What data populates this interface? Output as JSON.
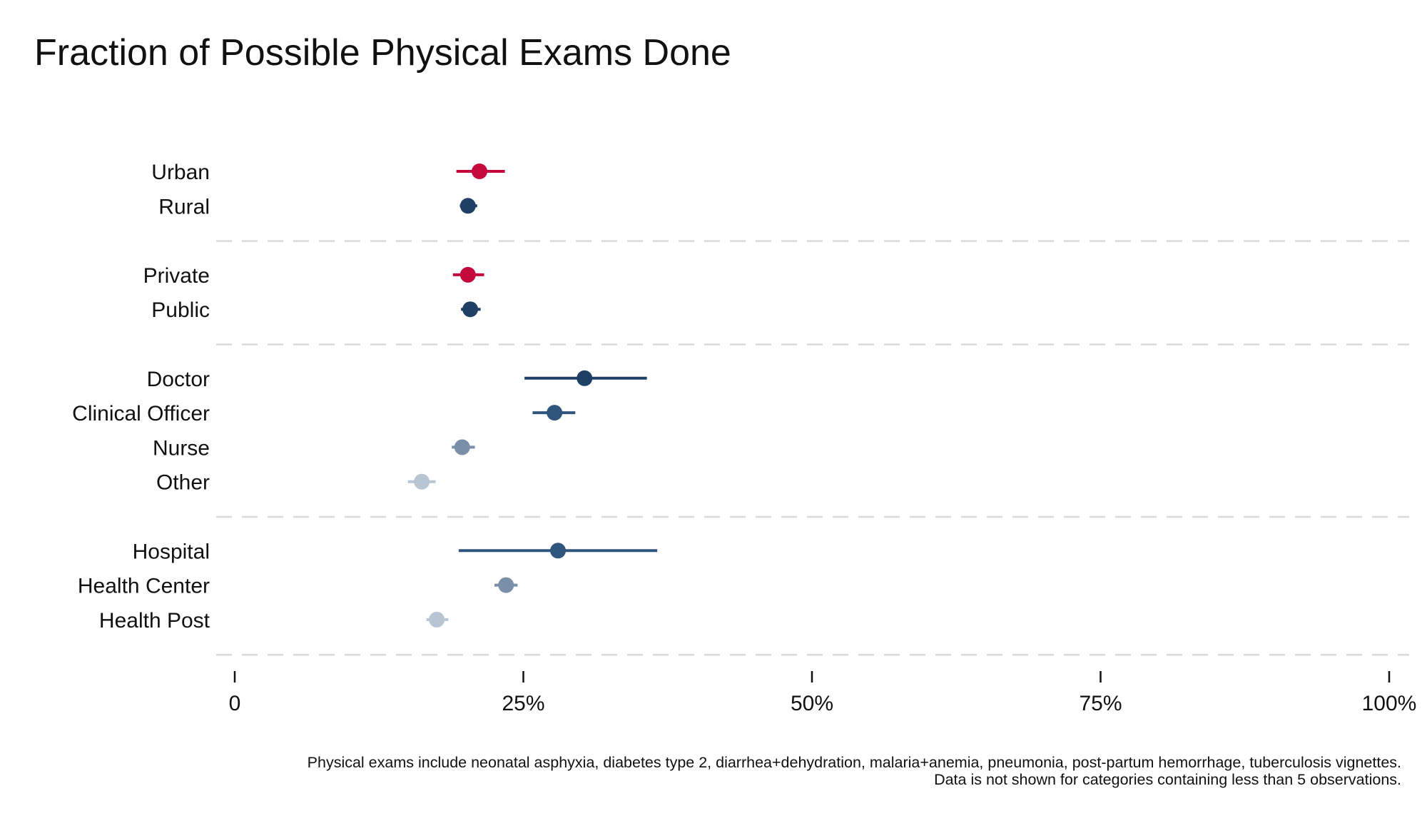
{
  "chart_data": {
    "type": "scatter",
    "subtype": "dot-and-whisker",
    "title": "Fraction of Possible Physical Exams Done",
    "xlim": [
      0,
      100
    ],
    "x_ticks": [
      0,
      25,
      50,
      75,
      100
    ],
    "x_tick_labels": [
      "0",
      "25%",
      "50%",
      "75%",
      "100%"
    ],
    "xlabel": "",
    "ylabel": "",
    "grid": false,
    "group_separators": "dashed",
    "colors": {
      "red": "#c4083c",
      "navy": "#1f3f66",
      "blue": "#2f557d",
      "steel": "#7a90a8",
      "light": "#b8c6d3",
      "separator": "#d9d9d9"
    },
    "groups": [
      {
        "rows": [
          {
            "label": "Urban",
            "value": 21.2,
            "ci": [
              19.2,
              23.4
            ],
            "color": "#c4083c"
          },
          {
            "label": "Rural",
            "value": 20.2,
            "ci": [
              19.5,
              21.0
            ],
            "color": "#1f3f66"
          }
        ]
      },
      {
        "rows": [
          {
            "label": "Private",
            "value": 20.2,
            "ci": [
              18.9,
              21.6
            ],
            "color": "#c4083c"
          },
          {
            "label": "Public",
            "value": 20.4,
            "ci": [
              19.6,
              21.3
            ],
            "color": "#1f3f66"
          }
        ]
      },
      {
        "rows": [
          {
            "label": "Doctor",
            "value": 30.3,
            "ci": [
              25.1,
              35.7
            ],
            "color": "#1f3f66"
          },
          {
            "label": "Clinical Officer",
            "value": 27.7,
            "ci": [
              25.8,
              29.5
            ],
            "color": "#2f557d"
          },
          {
            "label": "Nurse",
            "value": 19.7,
            "ci": [
              18.8,
              20.8
            ],
            "color": "#7a90a8"
          },
          {
            "label": "Other",
            "value": 16.2,
            "ci": [
              15.0,
              17.4
            ],
            "color": "#b8c6d3"
          }
        ]
      },
      {
        "rows": [
          {
            "label": "Hospital",
            "value": 28.0,
            "ci": [
              19.4,
              36.6
            ],
            "color": "#2f557d"
          },
          {
            "label": "Health Center",
            "value": 23.5,
            "ci": [
              22.5,
              24.5
            ],
            "color": "#7a90a8"
          },
          {
            "label": "Health Post",
            "value": 17.5,
            "ci": [
              16.6,
              18.5
            ],
            "color": "#b8c6d3"
          }
        ]
      }
    ]
  },
  "footnotes": [
    "Physical exams include neonatal asphyxia, diabetes type 2, diarrhea+dehydration, malaria+anemia, pneumonia, post-partum hemorrhage, tuberculosis vignettes.",
    "Data is not shown for categories containing less than 5 observations."
  ]
}
